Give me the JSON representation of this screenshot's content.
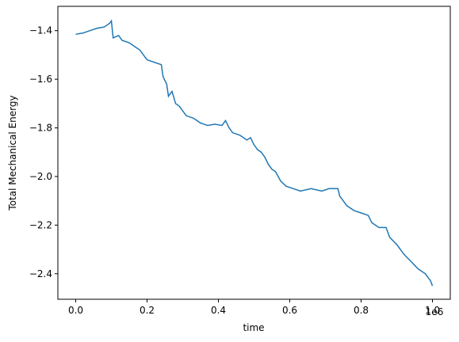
{
  "chart_data": {
    "type": "line",
    "xlabel": "time",
    "ylabel": "Total Mechanical Energy",
    "x_offset_label": "1e6",
    "xlim": [
      -0.05,
      1.05
    ],
    "ylim": [
      -2.505,
      -1.3
    ],
    "xticks": [
      {
        "value": 0,
        "label": "0.0"
      },
      0.2,
      0.4,
      0.6,
      0.8,
      {
        "value": 1,
        "label": "1.0"
      }
    ],
    "yticks": [
      {
        "value": -2.4,
        "label": "−2.4"
      },
      {
        "value": -2.2,
        "label": "−2.2"
      },
      {
        "value": -2.0,
        "label": "−2.0"
      },
      {
        "value": -1.8,
        "label": "−1.8"
      },
      {
        "value": -1.6,
        "label": "−1.6"
      },
      {
        "value": -1.4,
        "label": "−1.4"
      }
    ],
    "color": "#1f77b4",
    "x": [
      0,
      0.02,
      0.04,
      0.06,
      0.08,
      0.095,
      0.1,
      0.105,
      0.12,
      0.13,
      0.15,
      0.17,
      0.18,
      0.19,
      0.2,
      0.22,
      0.24,
      0.245,
      0.255,
      0.26,
      0.27,
      0.28,
      0.29,
      0.3,
      0.31,
      0.33,
      0.35,
      0.37,
      0.39,
      0.41,
      0.42,
      0.43,
      0.44,
      0.46,
      0.48,
      0.49,
      0.5,
      0.51,
      0.52,
      0.53,
      0.54,
      0.55,
      0.56,
      0.575,
      0.59,
      0.61,
      0.63,
      0.66,
      0.69,
      0.71,
      0.735,
      0.74,
      0.75,
      0.76,
      0.78,
      0.8,
      0.82,
      0.83,
      0.85,
      0.87,
      0.88,
      0.9,
      0.92,
      0.94,
      0.96,
      0.98,
      0.995,
      1.0
    ],
    "values": [
      -1.415,
      -1.41,
      -1.4,
      -1.39,
      -1.385,
      -1.37,
      -1.36,
      -1.43,
      -1.42,
      -1.44,
      -1.45,
      -1.47,
      -1.48,
      -1.5,
      -1.52,
      -1.53,
      -1.54,
      -1.59,
      -1.62,
      -1.67,
      -1.65,
      -1.7,
      -1.71,
      -1.73,
      -1.75,
      -1.76,
      -1.78,
      -1.79,
      -1.785,
      -1.79,
      -1.77,
      -1.8,
      -1.82,
      -1.83,
      -1.85,
      -1.84,
      -1.87,
      -1.89,
      -1.9,
      -1.92,
      -1.95,
      -1.97,
      -1.98,
      -2.02,
      -2.04,
      -2.05,
      -2.06,
      -2.05,
      -2.06,
      -2.05,
      -2.05,
      -2.08,
      -2.1,
      -2.12,
      -2.14,
      -2.15,
      -2.16,
      -2.19,
      -2.21,
      -2.21,
      -2.25,
      -2.28,
      -2.32,
      -2.35,
      -2.38,
      -2.4,
      -2.43,
      -2.45
    ]
  }
}
